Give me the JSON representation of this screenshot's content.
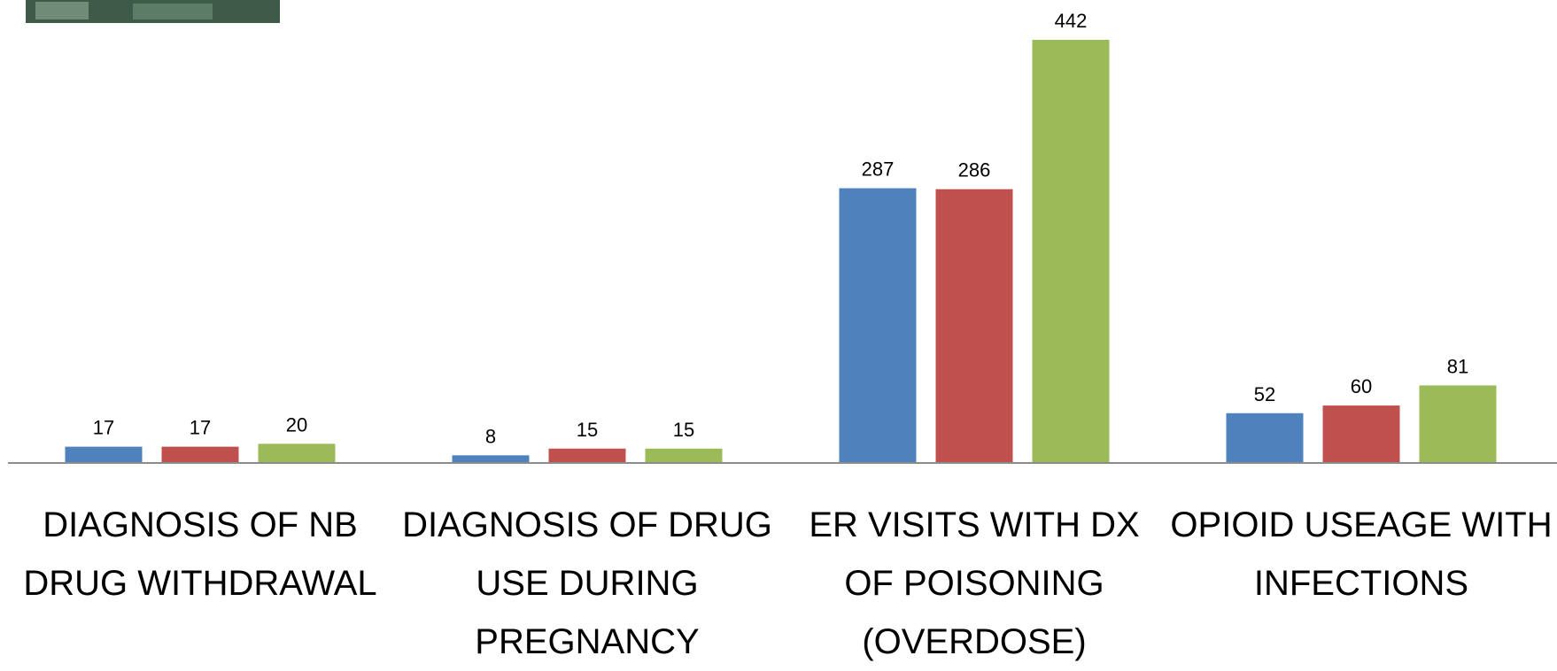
{
  "chart_data": {
    "type": "bar",
    "categories": [
      "DIAGNOSIS OF NB DRUG WITHDRAWAL",
      "DIAGNOSIS OF DRUG USE DURING PREGNANCY",
      "ER VISITS WITH DX OF POISONING (OVERDOSE)",
      "OPIOID USEAGE WITH INFECTIONS"
    ],
    "series": [
      {
        "color": "#4f81bd",
        "values": [
          17,
          8,
          287,
          52
        ]
      },
      {
        "color": "#c0504d",
        "values": [
          17,
          15,
          286,
          60
        ]
      },
      {
        "color": "#9bbb59",
        "values": [
          20,
          15,
          442,
          81
        ]
      }
    ]
  }
}
